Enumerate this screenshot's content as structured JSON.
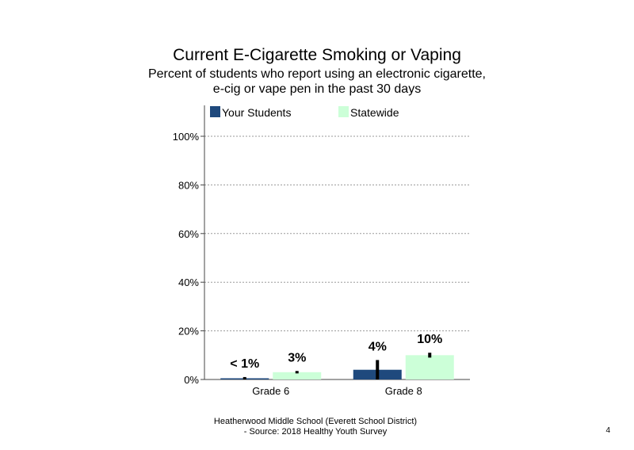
{
  "page_number": "4",
  "footer": {
    "line1": "Heatherwood Middle School (Everett School District)",
    "line2": "- Source: 2018 Healthy  Youth Survey"
  },
  "chart_data": {
    "type": "bar",
    "title": "Current  E-Cigarette  Smoking  or Vaping",
    "subtitle": [
      "Percent of students who report using an electronic cigarette,",
      "e-cig or vape pen in the past 30 days"
    ],
    "categories": [
      "Grade 6",
      "Grade 8"
    ],
    "series": [
      {
        "name": "Your Students",
        "color": "#1f497d",
        "values": [
          0.5,
          4
        ],
        "errors": [
          [
            0,
            1
          ],
          [
            0,
            8
          ]
        ],
        "labels": [
          "< 1%",
          "4%"
        ]
      },
      {
        "name": "Statewide",
        "color": "#ccffd8",
        "values": [
          3,
          10
        ],
        "errors": [
          [
            2.5,
            3.5
          ],
          [
            9,
            11
          ]
        ],
        "labels": [
          "3%",
          "10%"
        ]
      }
    ],
    "yticks": [
      "0%",
      "20%",
      "40%",
      "60%",
      "80%",
      "100%"
    ],
    "ylim": [
      0,
      100
    ],
    "grid": true,
    "legend": "top"
  }
}
